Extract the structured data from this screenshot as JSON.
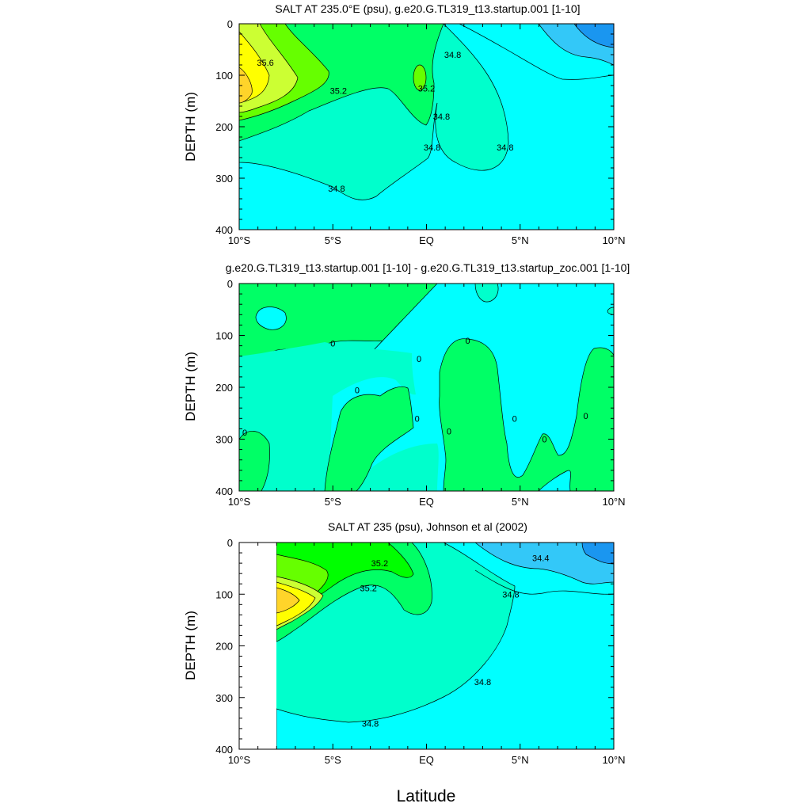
{
  "figure": {
    "xlabel": "Latitude"
  },
  "chart_data": [
    {
      "type": "contour",
      "title": "SALT AT 235.0°E (psu), g.e20.G.TL319_t13.startup.001 [1-10]",
      "ylabel": "DEPTH (m)",
      "xlim": [
        -10,
        10
      ],
      "ylim": [
        400,
        0
      ],
      "xticks": [
        -10,
        -5,
        0,
        5,
        10
      ],
      "xticklabels": [
        "10°S",
        "5°S",
        "EQ",
        "5°N",
        "10°N"
      ],
      "yticks": [
        0,
        100,
        200,
        300,
        400
      ],
      "yticklabels": [
        "0",
        "100",
        "200",
        "300",
        "400"
      ],
      "fill_levels": [
        {
          "level": "<=34.4",
          "color": "#1a96f0"
        },
        {
          "level": "34.4-34.6",
          "color": "#33c8f8"
        },
        {
          "level": "34.6-34.8",
          "color": "#00ffff"
        },
        {
          "level": "34.8-35.0",
          "color": "#00ffcc"
        },
        {
          "level": "35.0-35.2",
          "color": "#00ff66"
        },
        {
          "level": "35.2-35.4",
          "color": "#66ff00"
        },
        {
          "level": "35.4-35.6",
          "color": "#ccff33"
        },
        {
          "level": "35.6-35.8",
          "color": "#ffff00"
        },
        {
          "level": ">=35.8",
          "color": "#ffd42a"
        }
      ],
      "contour_labels": [
        {
          "text": "35.6",
          "x": -8.6,
          "y": 75
        },
        {
          "text": "35.2",
          "x": -4.7,
          "y": 130
        },
        {
          "text": "35.2",
          "x": 0.0,
          "y": 125
        },
        {
          "text": "34.8",
          "x": 1.4,
          "y": 60
        },
        {
          "text": "34.8",
          "x": 0.8,
          "y": 180
        },
        {
          "text": "34.8",
          "x": 0.3,
          "y": 240
        },
        {
          "text": "34.8",
          "x": 4.2,
          "y": 240
        },
        {
          "text": "34.8",
          "x": -4.8,
          "y": 320
        }
      ]
    },
    {
      "type": "contour",
      "title": "g.e20.G.TL319_t13.startup.001 [1-10] - g.e20.G.TL319_t13.startup_zoc.001 [1-10]",
      "ylabel": "DEPTH (m)",
      "xlim": [
        -10,
        10
      ],
      "ylim": [
        400,
        0
      ],
      "xticks": [
        -10,
        -5,
        0,
        5,
        10
      ],
      "xticklabels": [
        "10°S",
        "5°S",
        "EQ",
        "5°N",
        "10°N"
      ],
      "yticks": [
        0,
        100,
        200,
        300,
        400
      ],
      "yticklabels": [
        "0",
        "100",
        "200",
        "300",
        "400"
      ],
      "contour_labels": [
        {
          "text": "0",
          "x": -5.0,
          "y": 115
        },
        {
          "text": "0",
          "x": -0.4,
          "y": 145
        },
        {
          "text": "0",
          "x": 2.2,
          "y": 110
        },
        {
          "text": "0",
          "x": -3.7,
          "y": 205
        },
        {
          "text": "0",
          "x": -0.5,
          "y": 260
        },
        {
          "text": "0",
          "x": 1.2,
          "y": 285
        },
        {
          "text": "0",
          "x": 4.7,
          "y": 260
        },
        {
          "text": "0",
          "x": 8.5,
          "y": 255
        },
        {
          "text": "0",
          "x": -9.7,
          "y": 287
        },
        {
          "text": "0",
          "x": 6.3,
          "y": 300
        }
      ]
    },
    {
      "type": "contour",
      "title": "SALT AT 235 (psu), Johnson et al (2002)",
      "ylabel": "DEPTH (m)",
      "xlim": [
        -10,
        10
      ],
      "ylim": [
        400,
        0
      ],
      "xticks": [
        -10,
        -5,
        0,
        5,
        10
      ],
      "xticklabels": [
        "10°S",
        "5°S",
        "EQ",
        "5°N",
        "10°N"
      ],
      "yticks": [
        0,
        100,
        200,
        300,
        400
      ],
      "yticklabels": [
        "0",
        "100",
        "200",
        "300",
        "400"
      ],
      "data_start_lat": -8,
      "contour_labels": [
        {
          "text": "35.2",
          "x": -2.5,
          "y": 40
        },
        {
          "text": "35.2",
          "x": -3.1,
          "y": 88
        },
        {
          "text": "34.4",
          "x": 6.1,
          "y": 30
        },
        {
          "text": "34.8",
          "x": 4.5,
          "y": 100
        },
        {
          "text": "34.8",
          "x": 3.0,
          "y": 270
        },
        {
          "text": "34.8",
          "x": -3.0,
          "y": 350
        }
      ]
    }
  ]
}
